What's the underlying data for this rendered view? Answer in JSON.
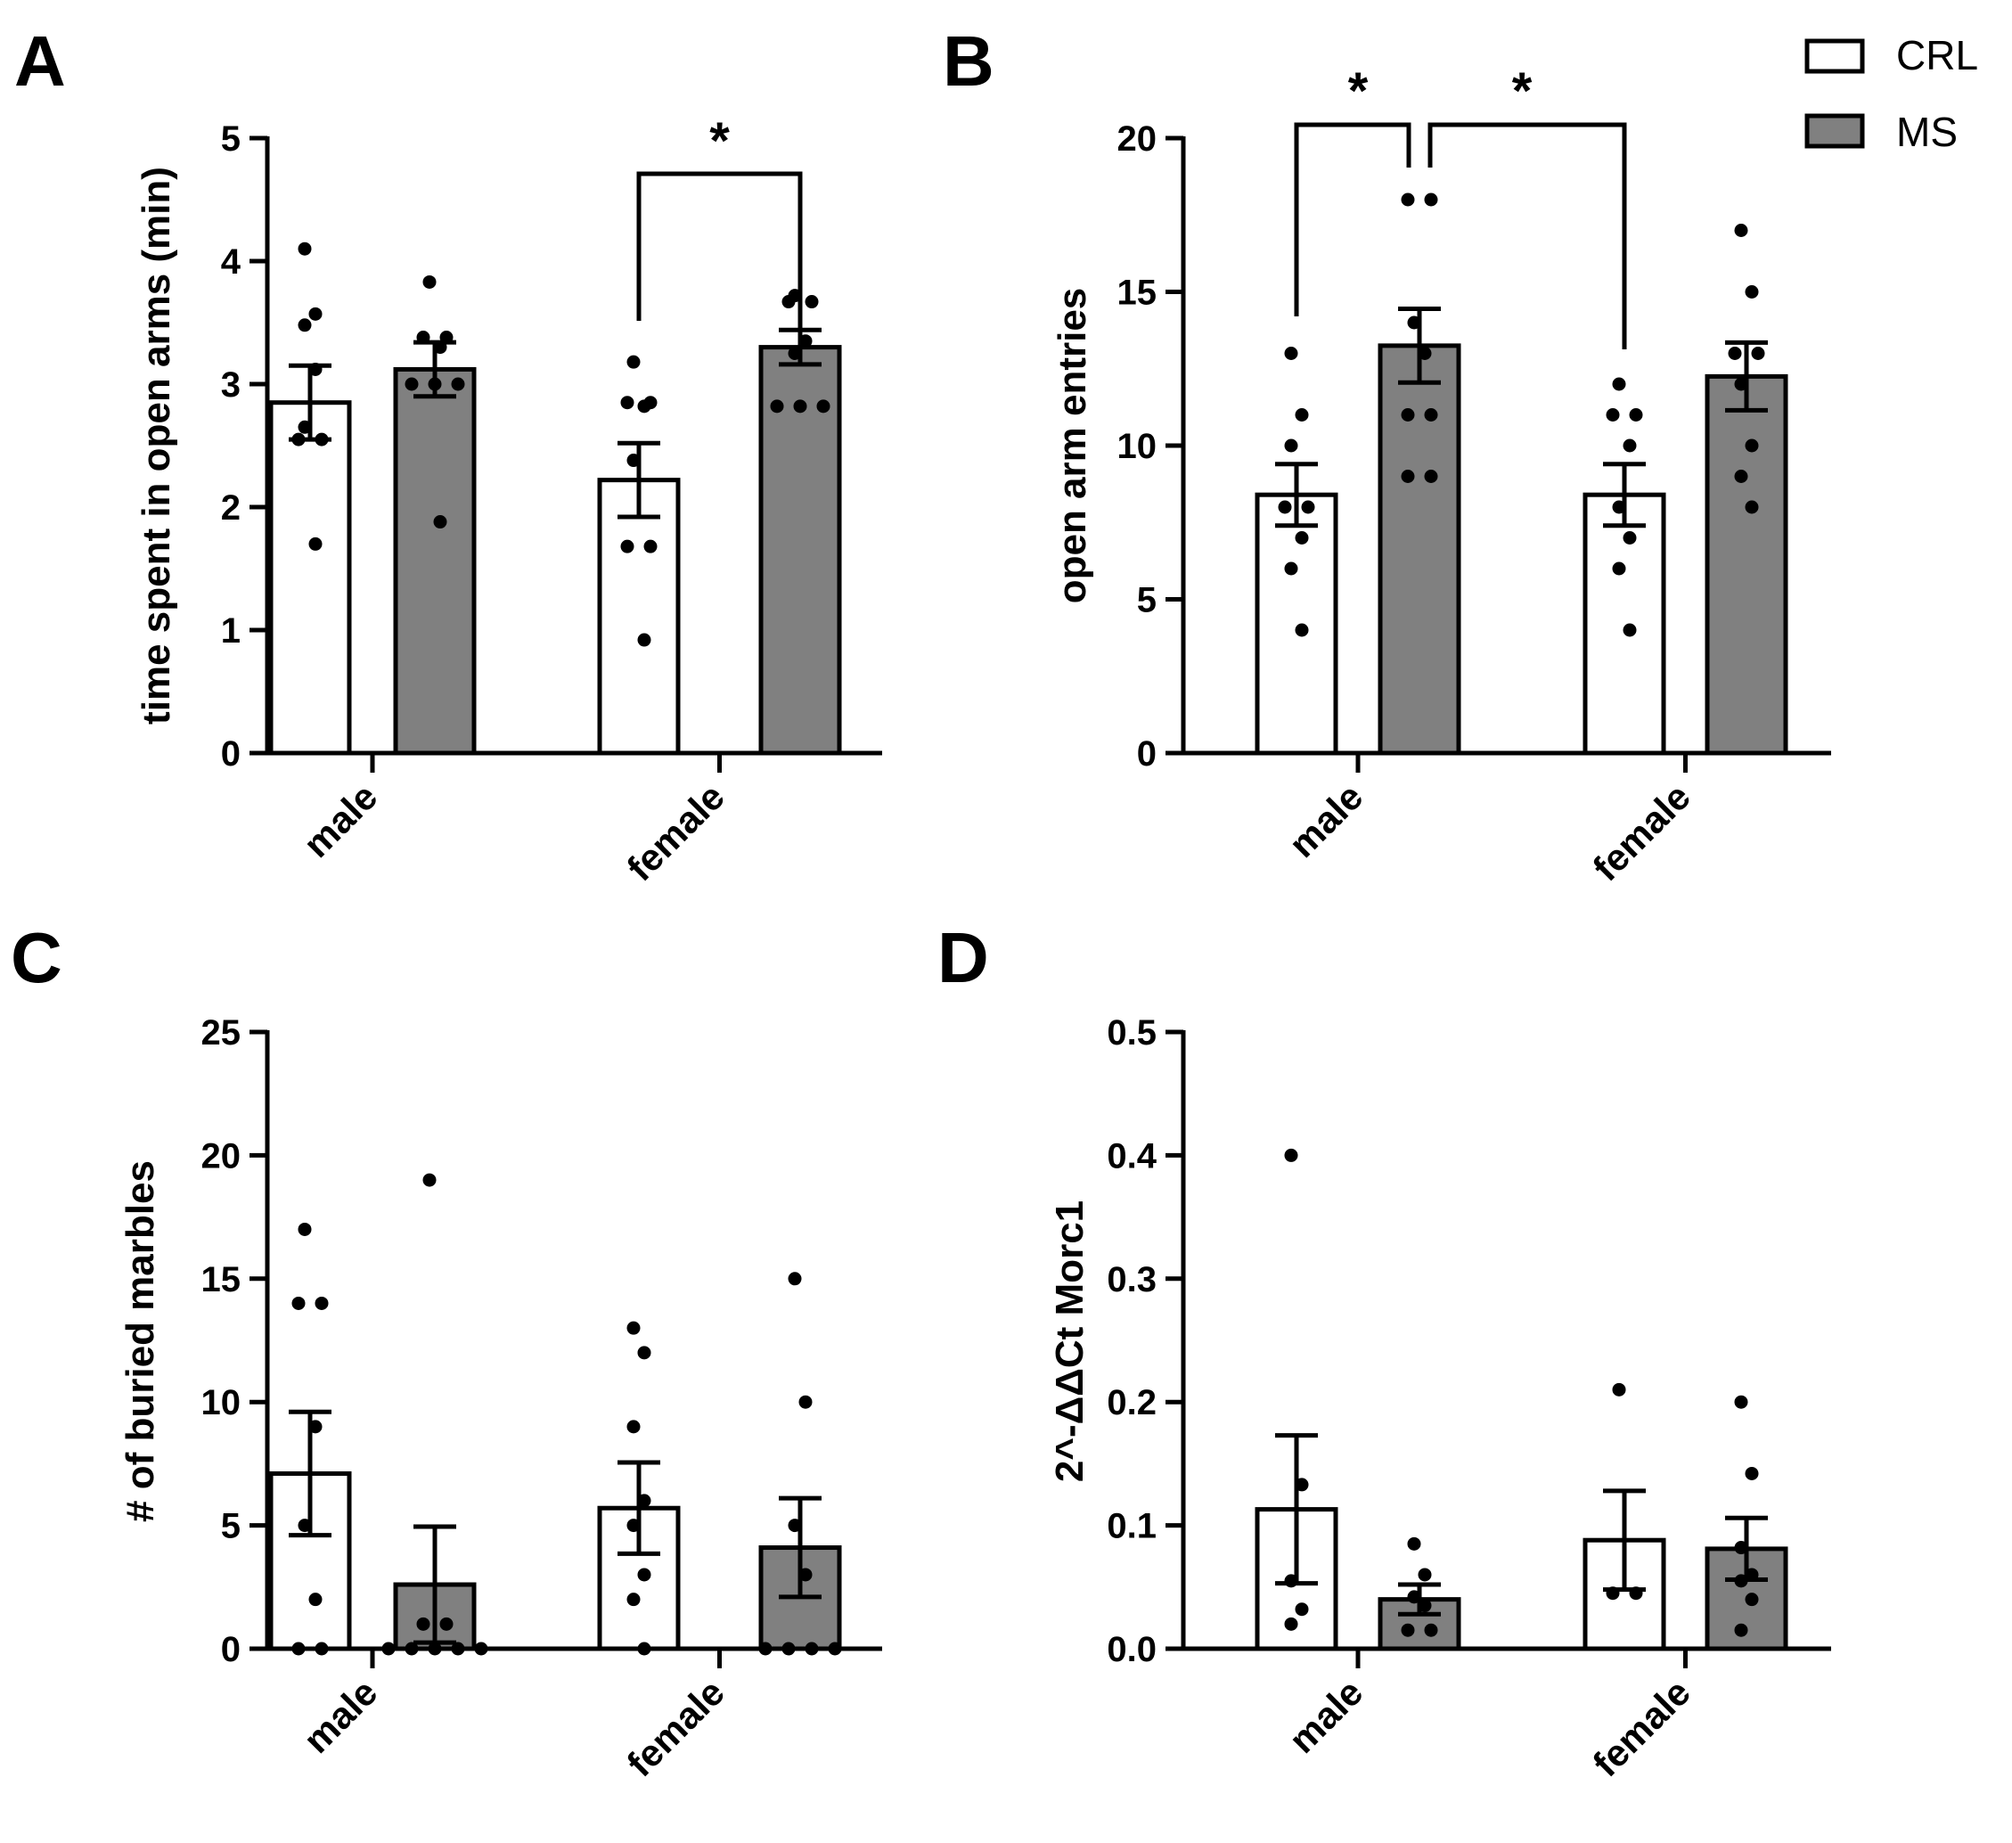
{
  "legend": {
    "items": [
      {
        "label": "CRL",
        "color": "#ffffff"
      },
      {
        "label": "MS",
        "color": "#808080"
      }
    ]
  },
  "chart_data": [
    {
      "panel": "A",
      "type": "bar",
      "categories": [
        "male",
        "female"
      ],
      "ylabel": "time spent in open arms (min)",
      "ylim": [
        0,
        5
      ],
      "yticks": [
        0,
        1,
        2,
        3,
        4,
        5
      ],
      "series": [
        {
          "name": "CRL",
          "color": "#ffffff",
          "values": [
            2.85,
            2.22
          ],
          "sem": [
            0.3,
            0.3
          ],
          "points": [
            [
              4.1,
              3.57,
              3.48,
              3.12,
              2.65,
              2.55,
              2.55,
              1.7
            ],
            [
              3.18,
              2.85,
              2.85,
              2.82,
              2.38,
              1.68,
              1.68,
              0.92
            ]
          ]
        },
        {
          "name": "MS",
          "color": "#808080",
          "values": [
            3.12,
            3.3
          ],
          "sem": [
            0.22,
            0.14
          ],
          "points": [
            [
              3.83,
              3.38,
              3.38,
              3.3,
              3.0,
              3.0,
              3.0,
              1.88
            ],
            [
              3.72,
              3.67,
              3.67,
              3.35,
              3.25,
              2.82,
              2.82,
              2.82
            ]
          ]
        }
      ],
      "significance": [
        {
          "label": "*",
          "between": "female CRL vs female MS"
        }
      ]
    },
    {
      "panel": "B",
      "type": "bar",
      "categories": [
        "male",
        "female"
      ],
      "ylabel": "open arm entries",
      "ylim": [
        0,
        20
      ],
      "yticks": [
        0,
        5,
        10,
        15,
        20
      ],
      "series": [
        {
          "name": "CRL",
          "color": "#ffffff",
          "values": [
            8.4,
            8.4
          ],
          "sem": [
            1.0,
            1.0
          ],
          "points": [
            [
              13,
              11,
              10,
              8,
              8,
              7,
              6,
              4
            ],
            [
              12,
              11,
              11,
              10,
              8,
              7,
              6,
              4
            ]
          ]
        },
        {
          "name": "MS",
          "color": "#808080",
          "values": [
            13.25,
            12.25
          ],
          "sem": [
            1.2,
            1.1
          ],
          "points": [
            [
              18,
              18,
              14,
              13,
              11,
              11,
              9,
              9
            ],
            [
              17,
              15,
              13,
              13,
              12,
              10,
              9,
              8
            ]
          ]
        }
      ],
      "significance": [
        {
          "label": "*",
          "between": "male CRL vs male MS"
        },
        {
          "label": "*",
          "between": "male MS vs female CRL"
        }
      ]
    },
    {
      "panel": "C",
      "type": "bar",
      "categories": [
        "male",
        "female"
      ],
      "ylabel": "# of buried marbles",
      "ylim": [
        0,
        25
      ],
      "yticks": [
        0,
        5,
        10,
        15,
        20,
        25
      ],
      "series": [
        {
          "name": "CRL",
          "color": "#ffffff",
          "values": [
            7.1,
            5.7
          ],
          "sem": [
            2.5,
            1.85
          ],
          "points": [
            [
              17,
              14,
              14,
              9,
              5,
              2,
              0,
              0
            ],
            [
              13,
              12,
              9,
              6,
              5,
              3,
              2,
              0
            ]
          ]
        },
        {
          "name": "MS",
          "color": "#808080",
          "values": [
            2.6,
            4.1
          ],
          "sem": [
            2.35,
            2.0
          ],
          "points": [
            [
              19,
              1,
              1,
              0,
              0,
              0,
              0,
              0
            ],
            [
              15,
              10,
              5,
              3,
              0,
              0,
              0,
              0
            ]
          ]
        }
      ],
      "significance": []
    },
    {
      "panel": "D",
      "type": "bar",
      "categories": [
        "male",
        "female"
      ],
      "ylabel": "2^-ΔΔCt Morc1",
      "ylim": [
        0,
        0.5
      ],
      "yticks": [
        "0.0",
        "0.1",
        "0.2",
        "0.3",
        "0.4",
        "0.5"
      ],
      "series": [
        {
          "name": "CRL",
          "color": "#ffffff",
          "values": [
            0.113,
            0.088
          ],
          "sem": [
            0.06,
            0.04
          ],
          "points": [
            [
              0.4,
              0.133,
              0.055,
              0.032,
              0.02
            ],
            [
              0.21,
              0.045,
              0.045
            ]
          ]
        },
        {
          "name": "MS",
          "color": "#808080",
          "values": [
            0.04,
            0.081
          ],
          "sem": [
            0.012,
            0.025
          ],
          "points": [
            [
              0.085,
              0.06,
              0.042,
              0.035,
              0.015,
              0.015
            ],
            [
              0.2,
              0.142,
              0.082,
              0.06,
              0.055,
              0.04,
              0.015
            ]
          ]
        }
      ],
      "significance": []
    }
  ]
}
